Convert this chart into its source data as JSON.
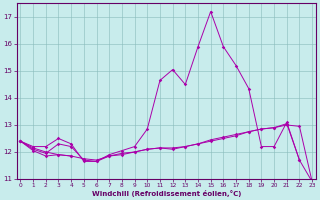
{
  "xlabel": "Windchill (Refroidissement éolien,°C)",
  "background_color": "#c8ecec",
  "grid_color": "#a0c8c8",
  "line_color": "#aa00aa",
  "x": [
    0,
    1,
    2,
    3,
    4,
    5,
    6,
    7,
    8,
    9,
    10,
    11,
    12,
    13,
    14,
    15,
    16,
    17,
    18,
    19,
    20,
    21,
    22,
    23
  ],
  "line1": [
    12.4,
    12.2,
    12.2,
    12.5,
    12.3,
    11.65,
    11.65,
    11.9,
    12.05,
    12.2,
    12.85,
    14.65,
    15.05,
    14.5,
    15.9,
    17.2,
    15.9,
    15.2,
    14.35,
    12.2,
    12.2,
    13.1,
    11.7,
    10.9
  ],
  "line2": [
    12.4,
    12.15,
    12.0,
    11.9,
    11.85,
    11.75,
    11.7,
    11.85,
    11.9,
    12.0,
    12.1,
    12.15,
    12.15,
    12.2,
    12.3,
    12.45,
    12.55,
    12.65,
    12.75,
    12.85,
    12.9,
    13.0,
    12.95,
    10.9
  ],
  "line3": [
    12.4,
    12.1,
    11.95,
    12.3,
    12.2,
    11.7,
    11.65,
    11.85,
    11.95,
    12.0,
    12.1,
    12.15,
    12.1,
    12.2,
    12.3,
    12.4,
    12.5,
    12.6,
    12.75,
    12.85,
    12.9,
    13.05,
    11.7,
    null
  ],
  "line4": [
    12.4,
    12.05,
    11.85,
    11.9,
    11.85,
    null,
    null,
    null,
    null,
    null,
    null,
    null,
    null,
    null,
    null,
    null,
    null,
    null,
    null,
    null,
    null,
    null,
    null,
    null
  ],
  "ylim": [
    11.0,
    17.5
  ],
  "xlim": [
    -0.3,
    23.3
  ],
  "yticks": [
    11,
    12,
    13,
    14,
    15,
    16,
    17
  ],
  "xticks": [
    0,
    1,
    2,
    3,
    4,
    5,
    6,
    7,
    8,
    9,
    10,
    11,
    12,
    13,
    14,
    15,
    16,
    17,
    18,
    19,
    20,
    21,
    22,
    23
  ]
}
